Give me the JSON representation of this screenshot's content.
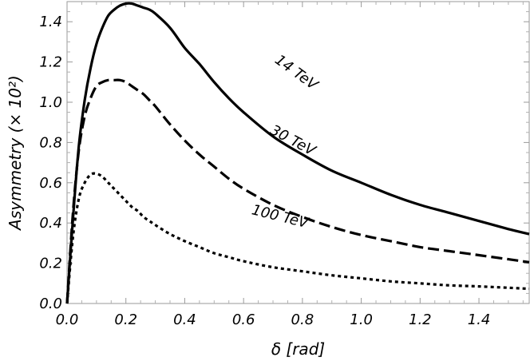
{
  "chart_data": {
    "type": "line",
    "title": "",
    "xlabel": "δ  [rad]",
    "ylabel": "Asymmetry (× 10²)",
    "xlim": [
      0,
      1.5708
    ],
    "ylim": [
      0,
      1.5
    ],
    "x_ticks": [
      "0.0",
      "0.2",
      "0.4",
      "0.6",
      "0.8",
      "1.0",
      "1.2",
      "1.4"
    ],
    "y_ticks": [
      "0.0",
      "0.2",
      "0.4",
      "0.6",
      "0.8",
      "1.0",
      "1.2",
      "1.4"
    ],
    "grid": false,
    "legend": "none",
    "series": [
      {
        "name": "14 TeV",
        "style": "solid",
        "x": [
          0,
          0.02,
          0.04,
          0.06,
          0.08,
          0.1,
          0.12,
          0.14,
          0.16,
          0.18,
          0.2,
          0.22,
          0.24,
          0.26,
          0.28,
          0.3,
          0.35,
          0.4,
          0.45,
          0.5,
          0.55,
          0.6,
          0.7,
          0.8,
          0.9,
          1.0,
          1.1,
          1.2,
          1.3,
          1.4,
          1.5,
          1.5708
        ],
        "values": [
          0.0,
          0.42,
          0.78,
          1.01,
          1.17,
          1.29,
          1.37,
          1.43,
          1.46,
          1.48,
          1.49,
          1.49,
          1.48,
          1.47,
          1.46,
          1.44,
          1.37,
          1.27,
          1.19,
          1.1,
          1.02,
          0.95,
          0.83,
          0.74,
          0.66,
          0.6,
          0.54,
          0.49,
          0.45,
          0.41,
          0.37,
          0.345
        ]
      },
      {
        "name": "30 TeV",
        "style": "dashed",
        "x": [
          0,
          0.02,
          0.04,
          0.06,
          0.08,
          0.1,
          0.12,
          0.14,
          0.16,
          0.18,
          0.2,
          0.22,
          0.24,
          0.26,
          0.28,
          0.3,
          0.35,
          0.4,
          0.45,
          0.5,
          0.55,
          0.6,
          0.7,
          0.8,
          0.9,
          1.0,
          1.1,
          1.2,
          1.3,
          1.4,
          1.5,
          1.5708
        ],
        "values": [
          0.0,
          0.45,
          0.76,
          0.93,
          1.02,
          1.08,
          1.1,
          1.11,
          1.11,
          1.11,
          1.1,
          1.08,
          1.06,
          1.04,
          1.01,
          0.98,
          0.89,
          0.81,
          0.74,
          0.68,
          0.62,
          0.57,
          0.49,
          0.43,
          0.38,
          0.34,
          0.31,
          0.28,
          0.26,
          0.24,
          0.22,
          0.205
        ]
      },
      {
        "name": "100 TeV",
        "style": "dotted",
        "x": [
          0,
          0.02,
          0.04,
          0.06,
          0.08,
          0.1,
          0.12,
          0.14,
          0.16,
          0.18,
          0.2,
          0.22,
          0.24,
          0.26,
          0.28,
          0.3,
          0.35,
          0.4,
          0.45,
          0.5,
          0.55,
          0.6,
          0.7,
          0.8,
          0.9,
          1.0,
          1.1,
          1.2,
          1.3,
          1.4,
          1.5,
          1.5708
        ],
        "values": [
          0.0,
          0.33,
          0.52,
          0.6,
          0.64,
          0.645,
          0.63,
          0.6,
          0.57,
          0.54,
          0.51,
          0.48,
          0.46,
          0.43,
          0.41,
          0.39,
          0.345,
          0.31,
          0.28,
          0.25,
          0.23,
          0.21,
          0.18,
          0.16,
          0.14,
          0.125,
          0.11,
          0.1,
          0.09,
          0.085,
          0.078,
          0.073
        ]
      }
    ],
    "curve_labels": [
      {
        "series": "14 TeV",
        "text": "14 TeV",
        "x": 0.77,
        "y": 1.13,
        "angle": 36
      },
      {
        "series": "30 TeV",
        "text": "30 TeV",
        "x": 0.76,
        "y": 0.79,
        "angle": 28
      },
      {
        "series": "100 TeV",
        "text": "100 TeV",
        "x": 0.72,
        "y": 0.41,
        "angle": 14
      }
    ]
  }
}
